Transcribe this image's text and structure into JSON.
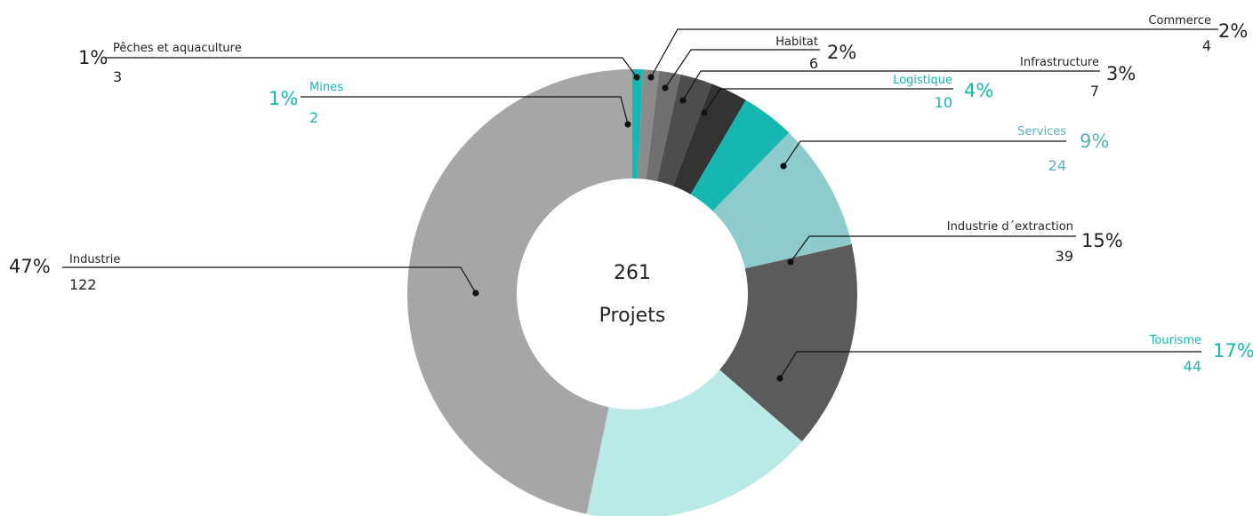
{
  "chart_data": {
    "type": "pie",
    "center": {
      "count": "261",
      "label": "Projets"
    },
    "slices": [
      {
        "name": "Mines",
        "count": "2",
        "value": 2,
        "pct": "1%",
        "color": "#16b6b1",
        "text_color": "#16b6b1"
      },
      {
        "name": "Pêches et aquaculture",
        "count": "3",
        "value": 3,
        "pct": "1%",
        "color": "#8a8a8a",
        "text_color": "#222222"
      },
      {
        "name": "Commerce",
        "count": "4",
        "value": 4,
        "pct": "2%",
        "color": "#6f6f6f",
        "text_color": "#222222"
      },
      {
        "name": "Habitat",
        "count": "6",
        "value": 6,
        "pct": "2%",
        "color": "#4d4d4d",
        "text_color": "#222222"
      },
      {
        "name": "Infrastructure",
        "count": "7",
        "value": 7,
        "pct": "3%",
        "color": "#333333",
        "text_color": "#222222"
      },
      {
        "name": "Logistique",
        "count": "10",
        "value": 10,
        "pct": "4%",
        "color": "#16b6b1",
        "text_color": "#16b6b1"
      },
      {
        "name": "Services",
        "count": "24",
        "value": 24,
        "pct": "9%",
        "color": "#8ecbcc",
        "text_color": "#5aafb8"
      },
      {
        "name": "Industrie d´extraction",
        "count": "39",
        "value": 39,
        "pct": "15%",
        "color": "#5b5b5b",
        "text_color": "#222222"
      },
      {
        "name": "Tourisme",
        "count": "44",
        "value": 44,
        "pct": "17%",
        "color": "#b9eae8",
        "text_color": "#16b6b1"
      },
      {
        "name": "Industrie",
        "count": "122",
        "value": 122,
        "pct": "47%",
        "color": "#a6a6a6",
        "text_color": "#222222"
      }
    ]
  }
}
